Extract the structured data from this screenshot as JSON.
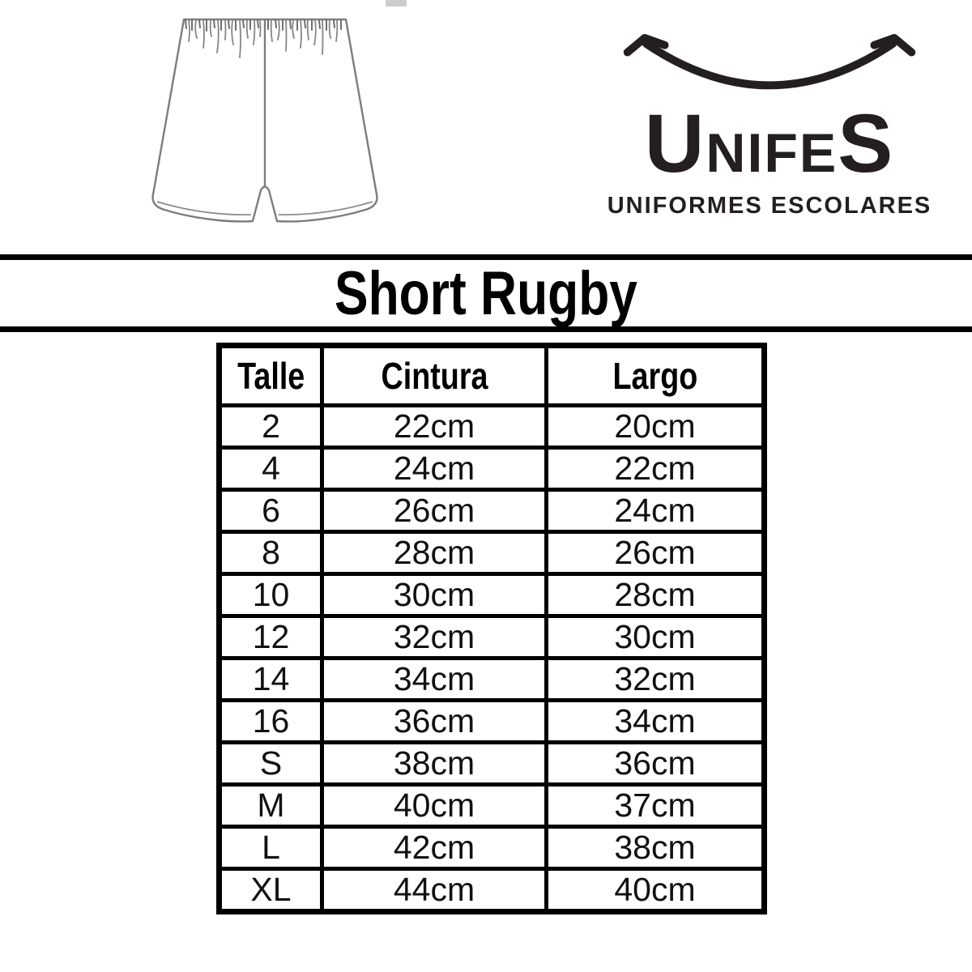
{
  "logo": {
    "brand_first": "U",
    "brand_middle": "NIFE",
    "brand_last": "S",
    "brand_full": "UNIFES",
    "tagline": "UNIFORMES ESCOLARES",
    "ink_color": "#231f20"
  },
  "product": {
    "title": "Short Rugby"
  },
  "size_chart": {
    "columns": [
      "Talle",
      "Cintura",
      "Largo"
    ],
    "rows": [
      [
        "2",
        "22cm",
        "20cm"
      ],
      [
        "4",
        "24cm",
        "22cm"
      ],
      [
        "6",
        "26cm",
        "24cm"
      ],
      [
        "8",
        "28cm",
        "26cm"
      ],
      [
        "10",
        "30cm",
        "28cm"
      ],
      [
        "12",
        "32cm",
        "30cm"
      ],
      [
        "14",
        "34cm",
        "32cm"
      ],
      [
        "16",
        "36cm",
        "34cm"
      ],
      [
        "S",
        "38cm",
        "36cm"
      ],
      [
        "M",
        "40cm",
        "37cm"
      ],
      [
        "L",
        "42cm",
        "38cm"
      ],
      [
        "XL",
        "44cm",
        "40cm"
      ]
    ]
  },
  "chart_data": {
    "type": "table",
    "title": "Short Rugby",
    "columns": [
      "Talle",
      "Cintura",
      "Largo"
    ],
    "rows": [
      [
        "2",
        "22cm",
        "20cm"
      ],
      [
        "4",
        "24cm",
        "22cm"
      ],
      [
        "6",
        "26cm",
        "24cm"
      ],
      [
        "8",
        "28cm",
        "26cm"
      ],
      [
        "10",
        "30cm",
        "28cm"
      ],
      [
        "12",
        "32cm",
        "30cm"
      ],
      [
        "14",
        "34cm",
        "32cm"
      ],
      [
        "16",
        "36cm",
        "34cm"
      ],
      [
        "S",
        "38cm",
        "36cm"
      ],
      [
        "M",
        "40cm",
        "37cm"
      ],
      [
        "L",
        "42cm",
        "38cm"
      ],
      [
        "XL",
        "44cm",
        "40cm"
      ]
    ]
  },
  "icons": {
    "smile": "smile-arrows-icon",
    "shorts": "shorts-line-drawing"
  },
  "colors": {
    "background": "#ffffff",
    "table_border": "#000000",
    "drawing_stroke": "#7d7d7d"
  }
}
